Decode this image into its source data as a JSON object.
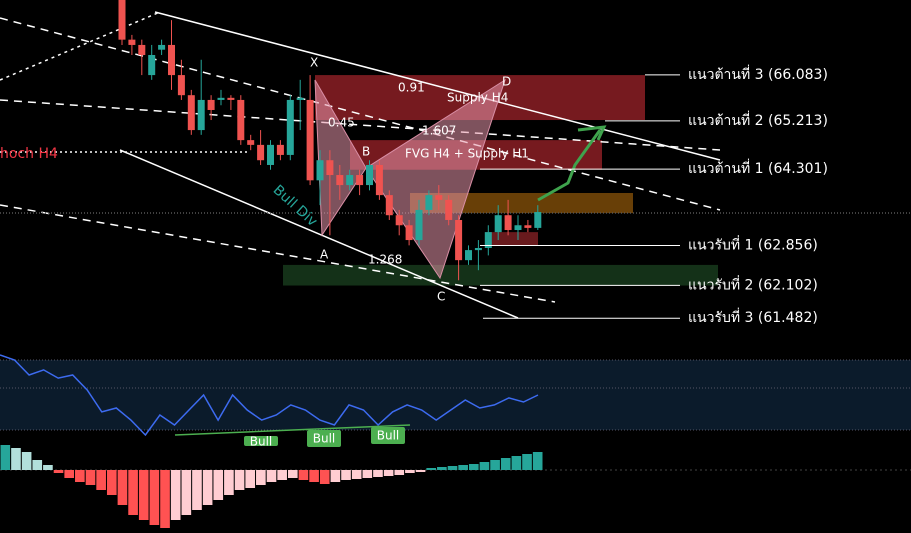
{
  "chart_data": {
    "type": "candlestick",
    "up_color": "#26a69a",
    "down_color": "#ef5350",
    "ylim": [
      61.07,
      67.5
    ],
    "open": [
      67.5,
      66.75,
      66.65,
      66.08,
      66.56,
      66.65,
      66.08,
      65.7,
      65.04,
      65.61,
      65.61,
      65.65,
      65.61,
      64.85,
      64.76,
      64.38,
      64.76,
      64.57,
      65.61,
      65.61,
      64.09,
      64.47,
      64.19,
      64.0,
      64.19,
      64.0,
      64.38,
      63.81,
      63.43,
      63.24,
      62.96,
      63.53,
      63.81,
      63.72,
      63.34,
      62.58,
      62.77,
      62.81,
      63.11,
      63.43,
      63.15,
      63.24,
      63.19
    ],
    "high": [
      67.5,
      66.84,
      66.75,
      66.65,
      66.75,
      67.12,
      66.37,
      65.8,
      66.37,
      65.7,
      65.8,
      65.7,
      65.7,
      64.95,
      65.04,
      64.85,
      64.85,
      65.7,
      65.99,
      66.08,
      64.66,
      64.66,
      64.38,
      64.29,
      64.29,
      64.47,
      64.47,
      63.9,
      63.53,
      63.34,
      63.72,
      63.9,
      64.0,
      63.81,
      63.43,
      62.86,
      62.96,
      63.24,
      63.62,
      63.72,
      63.43,
      63.34,
      63.62
    ],
    "low": [
      66.65,
      66.46,
      66.08,
      65.99,
      66.46,
      65.8,
      65.61,
      64.95,
      64.95,
      65.23,
      65.51,
      65.42,
      64.76,
      64.66,
      64.38,
      64.29,
      64.47,
      64.47,
      65.04,
      64.0,
      63.62,
      63.05,
      63.72,
      63.9,
      63.81,
      63.9,
      63.72,
      63.34,
      63.05,
      62.86,
      62.86,
      63.43,
      63.53,
      63.24,
      62.2,
      62.49,
      62.39,
      62.67,
      62.96,
      63.05,
      62.96,
      63.11,
      63.15
    ],
    "close": [
      66.75,
      66.65,
      66.46,
      66.46,
      66.65,
      66.08,
      65.7,
      65.04,
      65.61,
      65.42,
      65.65,
      65.61,
      64.85,
      64.76,
      64.47,
      64.76,
      64.57,
      65.61,
      65.65,
      64.09,
      64.47,
      64.19,
      64.0,
      64.19,
      64.0,
      64.38,
      63.81,
      63.43,
      63.24,
      62.96,
      63.53,
      63.81,
      63.72,
      63.34,
      62.58,
      62.77,
      62.81,
      63.11,
      63.43,
      63.15,
      63.24,
      63.19,
      63.49
    ],
    "levels": [
      {
        "label": "แนวต้านที่ 3 (66.083)",
        "value": 66.083
      },
      {
        "label": "แนวต้านที่ 2 (65.213)",
        "value": 65.213
      },
      {
        "label": "แนวต้านที่ 1 (64.301)",
        "value": 64.301
      },
      {
        "label": "แนวรับที่ 1 (62.856)",
        "value": 62.856
      },
      {
        "label": "แนวรับที่ 2 (62.102)",
        "value": 62.102
      },
      {
        "label": "แนวรับที่ 3 (61.482)",
        "value": 61.482
      }
    ],
    "zones": [
      {
        "top": 66.08,
        "bottom": 65.23,
        "color": "#8b1e25"
      },
      {
        "top": 64.85,
        "bottom": 64.29,
        "color": "#8b1e25"
      },
      {
        "top": 63.85,
        "bottom": 63.47,
        "color": "#7a4a08"
      },
      {
        "top": 63.11,
        "bottom": 62.86,
        "color": "#7a1e22"
      },
      {
        "top": 62.49,
        "bottom": 62.1,
        "color": "#183a1c"
      }
    ],
    "annotations": [
      "X",
      "A",
      "B",
      "C",
      "D",
      "0.91",
      "Supply H4",
      "0.45",
      "1.607",
      "FVG H4 + Supply H1",
      "1.268",
      "hoch H4",
      "Bull Div",
      "Bull",
      "Bull",
      "Bull"
    ],
    "rsi": {
      "color": "#3d6bf0",
      "ylim": [
        0,
        100
      ],
      "levels": [
        70,
        50,
        20
      ],
      "values": [
        73.6,
        70,
        59.3,
        62.9,
        57.1,
        59.3,
        48.6,
        32.9,
        35.7,
        27.1,
        16.4,
        30.7,
        23.6,
        34.3,
        45,
        27.1,
        45,
        34.3,
        27.1,
        30.7,
        37.9,
        34.3,
        27.1,
        23.6,
        37.9,
        34.3,
        23.6,
        32.9,
        37.9,
        34.3,
        27.1,
        34.3,
        41.4,
        35.7,
        37.9,
        42.9,
        40,
        45
      ]
    },
    "histogram": {
      "ylim": [
        -60,
        25
      ],
      "values": [
        25,
        22,
        18,
        10,
        5,
        -3,
        -8,
        -12,
        -15,
        -20,
        -25,
        -35,
        -45,
        -50,
        -55,
        -58,
        -50,
        -45,
        -40,
        -35,
        -30,
        -25,
        -20,
        -18,
        -15,
        -12,
        -10,
        -8,
        -10,
        -12,
        -14,
        -12,
        -10,
        -9,
        -8,
        -7,
        -6,
        -5,
        -3,
        -2,
        2,
        3,
        4,
        5,
        6,
        8,
        10,
        12,
        14,
        16,
        18
      ]
    }
  }
}
